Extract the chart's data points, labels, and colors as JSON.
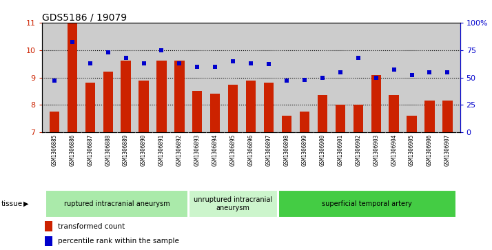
{
  "title": "GDS5186 / 19079",
  "samples": [
    "GSM1306885",
    "GSM1306886",
    "GSM1306887",
    "GSM1306888",
    "GSM1306889",
    "GSM1306890",
    "GSM1306891",
    "GSM1306892",
    "GSM1306893",
    "GSM1306894",
    "GSM1306895",
    "GSM1306896",
    "GSM1306897",
    "GSM1306898",
    "GSM1306899",
    "GSM1306900",
    "GSM1306901",
    "GSM1306902",
    "GSM1306903",
    "GSM1306904",
    "GSM1306905",
    "GSM1306906",
    "GSM1306907"
  ],
  "bar_values": [
    7.77,
    11.0,
    8.82,
    9.22,
    9.62,
    8.88,
    9.62,
    9.62,
    8.5,
    8.42,
    8.75,
    8.88,
    8.82,
    7.62,
    7.77,
    8.35,
    8.02,
    8.02,
    9.08,
    8.35,
    7.62,
    8.15,
    8.15
  ],
  "percentile_values": [
    47,
    82,
    63,
    73,
    68,
    63,
    75,
    63,
    60,
    60,
    65,
    63,
    62,
    47,
    48,
    50,
    55,
    68,
    50,
    57,
    52,
    55,
    55
  ],
  "bar_color": "#cc2200",
  "dot_color": "#0000cc",
  "ylim_left": [
    7,
    11
  ],
  "ylim_right": [
    0,
    100
  ],
  "yticks_left": [
    7,
    8,
    9,
    10,
    11
  ],
  "yticks_right": [
    0,
    25,
    50,
    75,
    100
  ],
  "ytick_labels_right": [
    "0",
    "25",
    "50",
    "75",
    "100%"
  ],
  "groups": [
    {
      "label": "ruptured intracranial aneurysm",
      "start": 0,
      "end": 7,
      "color": "#aaeaaa"
    },
    {
      "label": "unruptured intracranial\naneurysm",
      "start": 8,
      "end": 12,
      "color": "#ccf5cc"
    },
    {
      "label": "superficial temporal artery",
      "start": 13,
      "end": 22,
      "color": "#44cc44"
    }
  ],
  "tick_bg_color": "#cccccc",
  "plot_bg_color": "#cccccc",
  "fig_bg_color": "#ffffff",
  "tissue_label": "tissue",
  "legend_bar_label": "transformed count",
  "legend_dot_label": "percentile rank within the sample",
  "title_fontsize": 10,
  "axis_fontsize": 8,
  "tick_fontsize": 5.5,
  "legend_fontsize": 7.5,
  "group_fontsize": 7
}
